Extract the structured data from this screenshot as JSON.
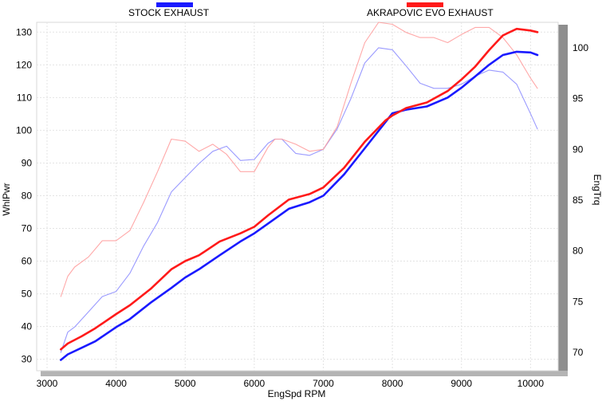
{
  "chart_data": {
    "type": "line",
    "x_axis": {
      "label": "EngSpd  RPM",
      "range": [
        2850,
        10400
      ],
      "ticks": [
        3000,
        4000,
        5000,
        6000,
        7000,
        8000,
        9000,
        10000
      ]
    },
    "y_left": {
      "label": "WhlPwr",
      "range": [
        26.5,
        133
      ],
      "ticks": [
        30,
        40,
        50,
        60,
        70,
        80,
        90,
        100,
        110,
        120,
        130
      ]
    },
    "y_right": {
      "label": "EngTrq",
      "range": [
        68.2,
        102.5
      ],
      "ticks": [
        70,
        75,
        80,
        85,
        90,
        95,
        100
      ]
    },
    "grid": true,
    "legend": [
      {
        "name": "STOCK EXHAUST",
        "color": "#1a1aff"
      },
      {
        "name": "AKRAPOVIC EVO EXHAUST",
        "color": "#ff1a1a"
      }
    ],
    "series": [
      {
        "name": "STOCK EXHAUST",
        "metric": "WhlPwr",
        "axis": "left",
        "color": "#1a1aff",
        "x": [
          3200,
          3300,
          3500,
          3700,
          4000,
          4200,
          4500,
          4800,
          5000,
          5200,
          5500,
          5800,
          6000,
          6200,
          6500,
          6800,
          7000,
          7300,
          7600,
          7900,
          8000,
          8200,
          8500,
          8800,
          9000,
          9200,
          9400,
          9600,
          9800,
          10000,
          10100
        ],
        "y": [
          29.8,
          31.5,
          33.5,
          35.5,
          39.8,
          42.3,
          47.3,
          51.8,
          55.0,
          57.5,
          61.8,
          66.0,
          68.5,
          71.5,
          76.0,
          78.0,
          80.0,
          86.5,
          94.5,
          102.5,
          105.2,
          106.3,
          107.3,
          110.0,
          113.0,
          116.5,
          120.0,
          123.0,
          124.0,
          123.8,
          123.0
        ]
      },
      {
        "name": "AKRAPOVIC EVO EXHAUST",
        "metric": "WhlPwr",
        "axis": "left",
        "color": "#ff1a1a",
        "x": [
          3200,
          3300,
          3500,
          3700,
          4000,
          4200,
          4500,
          4800,
          5000,
          5200,
          5500,
          5800,
          6000,
          6200,
          6500,
          6800,
          7000,
          7300,
          7600,
          7900,
          8000,
          8200,
          8500,
          8800,
          9000,
          9200,
          9400,
          9600,
          9800,
          10000,
          10100
        ],
        "y": [
          33.0,
          34.8,
          37.0,
          39.5,
          43.8,
          46.5,
          51.5,
          57.5,
          60.0,
          61.8,
          66.0,
          68.5,
          70.5,
          74.0,
          78.8,
          80.5,
          82.5,
          88.5,
          96.5,
          103.0,
          104.5,
          106.8,
          108.5,
          112.0,
          115.5,
          119.5,
          124.5,
          129.0,
          131.0,
          130.5,
          130.0
        ]
      },
      {
        "name": "STOCK EXHAUST",
        "metric": "EngTrq",
        "axis": "right",
        "color": "#8888ff",
        "x": [
          3200,
          3300,
          3400,
          3600,
          3800,
          4000,
          4200,
          4400,
          4600,
          4800,
          5000,
          5200,
          5400,
          5600,
          5800,
          6000,
          6200,
          6300,
          6400,
          6600,
          6800,
          7000,
          7200,
          7400,
          7600,
          7800,
          8000,
          8200,
          8400,
          8600,
          8800,
          9000,
          9200,
          9400,
          9600,
          9800,
          10000,
          10100
        ],
        "y": [
          70.0,
          72.0,
          72.5,
          74.0,
          75.5,
          76.0,
          77.8,
          80.5,
          82.8,
          85.8,
          87.2,
          88.6,
          89.8,
          90.3,
          88.9,
          89.0,
          90.6,
          91.0,
          91.0,
          89.6,
          89.4,
          90.0,
          92.0,
          95.0,
          98.5,
          100.0,
          99.8,
          98.2,
          96.5,
          96.0,
          96.0,
          96.4,
          97.2,
          97.8,
          97.6,
          96.4,
          93.5,
          92.0
        ]
      },
      {
        "name": "AKRAPOVIC EVO EXHAUST",
        "metric": "EngTrq",
        "axis": "right",
        "color": "#ff9999",
        "x": [
          3200,
          3300,
          3400,
          3600,
          3800,
          4000,
          4200,
          4400,
          4600,
          4800,
          5000,
          5200,
          5400,
          5600,
          5800,
          6000,
          6200,
          6300,
          6400,
          6600,
          6800,
          7000,
          7200,
          7400,
          7600,
          7800,
          8000,
          8200,
          8400,
          8600,
          8800,
          9000,
          9200,
          9400,
          9600,
          9800,
          10000,
          10100
        ],
        "y": [
          75.5,
          77.5,
          78.4,
          79.4,
          81.0,
          81.0,
          82.0,
          84.8,
          87.8,
          91.0,
          90.8,
          89.8,
          90.5,
          89.5,
          87.8,
          87.8,
          90.2,
          91.0,
          91.0,
          90.5,
          89.8,
          90.0,
          92.2,
          96.5,
          100.5,
          102.5,
          102.3,
          101.5,
          101.0,
          101.0,
          100.5,
          101.3,
          102.0,
          102.0,
          101.0,
          99.3,
          97.0,
          96.0
        ]
      }
    ]
  }
}
